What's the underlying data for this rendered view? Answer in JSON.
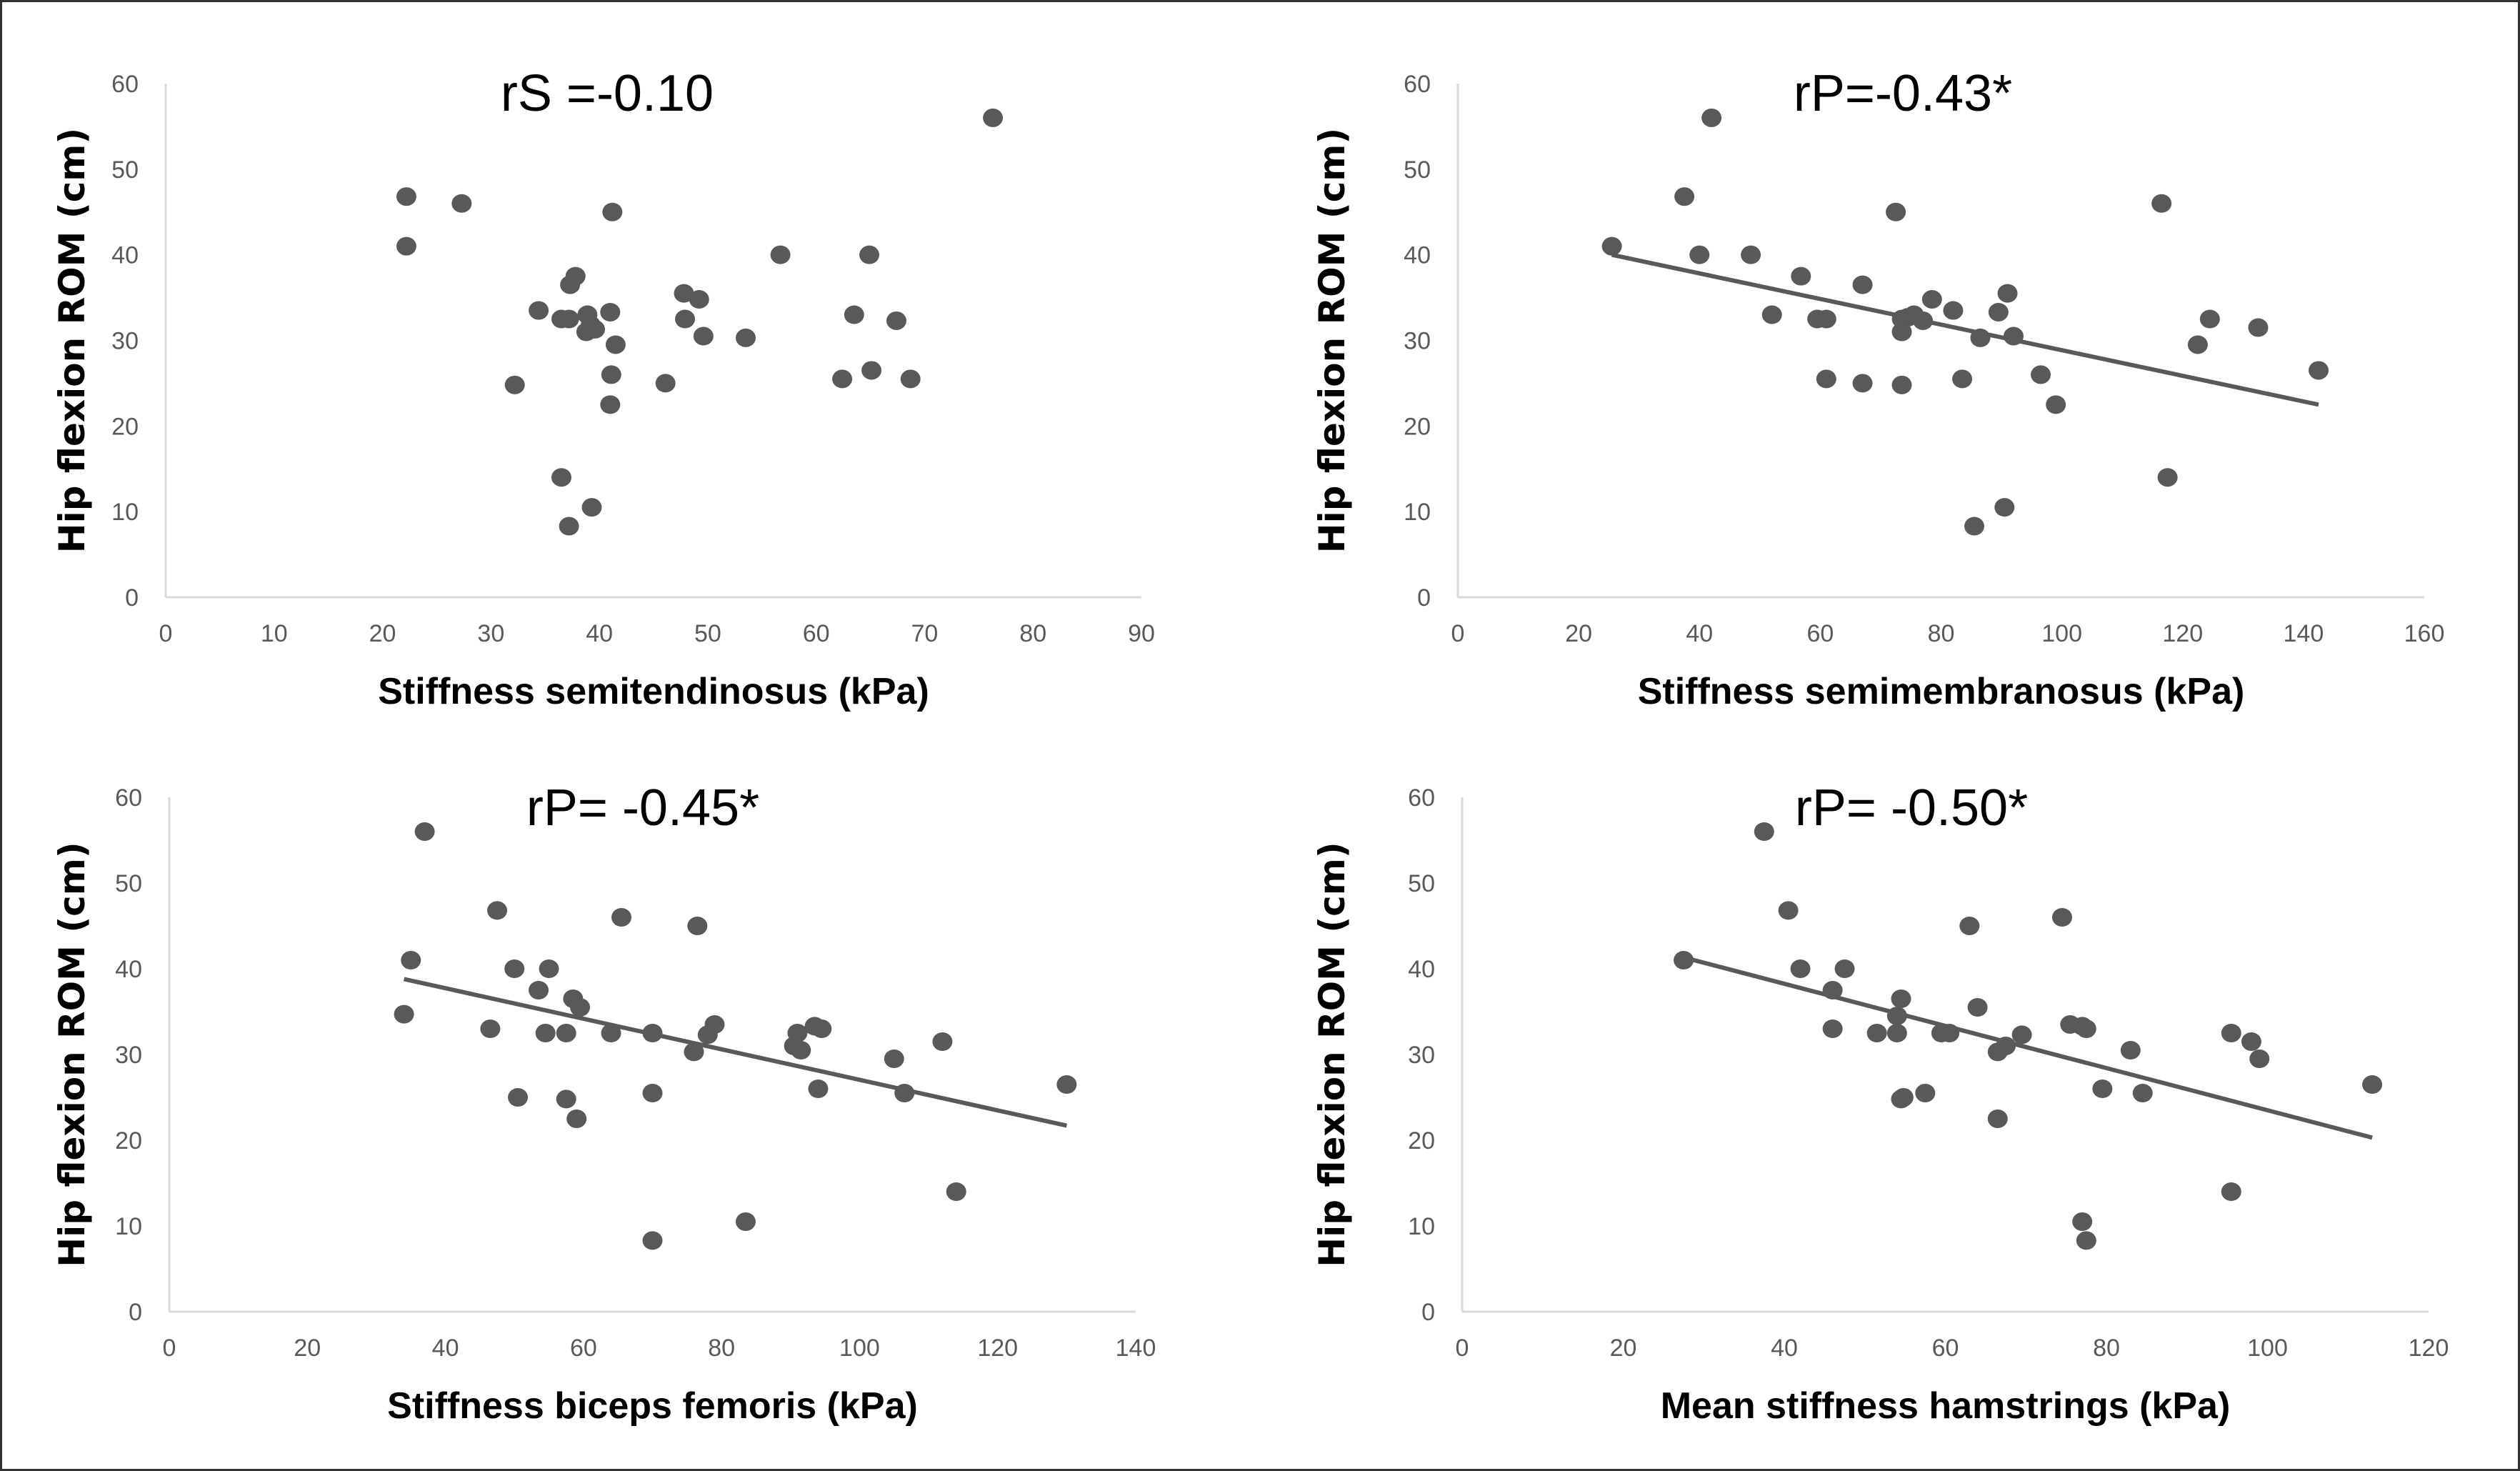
{
  "figure": {
    "border_color": "#333333",
    "point_color": "#595959",
    "trend_color": "#595959",
    "axis_color": "#d9d9d9"
  },
  "chart_data": [
    {
      "id": "semitendinosus",
      "type": "scatter",
      "title": "",
      "annotation": "rS =-0.10",
      "xlabel": "Stiffness semitendinosus (kPa)",
      "ylabel": "Hip flexion ROM (cm)",
      "xlim": [
        0,
        90
      ],
      "ylim": [
        0,
        60
      ],
      "xticks": [
        0,
        10,
        20,
        30,
        40,
        50,
        60,
        70,
        80,
        90
      ],
      "yticks": [
        0,
        10,
        20,
        30,
        40,
        50,
        60
      ],
      "grid": false,
      "trendline": null,
      "points": [
        [
          22.2,
          46.8
        ],
        [
          22.2,
          41.0
        ],
        [
          27.3,
          46.0
        ],
        [
          41.2,
          45.0
        ],
        [
          76.3,
          56.0
        ],
        [
          56.7,
          40.0
        ],
        [
          64.9,
          40.0
        ],
        [
          37.8,
          37.5
        ],
        [
          37.3,
          36.5
        ],
        [
          34.4,
          33.5
        ],
        [
          36.5,
          32.5
        ],
        [
          37.2,
          32.5
        ],
        [
          38.9,
          33.0
        ],
        [
          41.0,
          33.3
        ],
        [
          38.8,
          31.0
        ],
        [
          39.2,
          31.8
        ],
        [
          39.6,
          31.3
        ],
        [
          41.5,
          29.5
        ],
        [
          47.8,
          35.5
        ],
        [
          49.2,
          34.8
        ],
        [
          47.9,
          32.5
        ],
        [
          49.6,
          30.5
        ],
        [
          53.5,
          30.3
        ],
        [
          63.5,
          33.0
        ],
        [
          67.4,
          32.3
        ],
        [
          32.2,
          24.8
        ],
        [
          41.1,
          26.0
        ],
        [
          41.0,
          22.5
        ],
        [
          46.1,
          25.0
        ],
        [
          62.4,
          25.5
        ],
        [
          65.1,
          26.5
        ],
        [
          68.7,
          25.5
        ],
        [
          36.5,
          14.0
        ],
        [
          39.3,
          10.5
        ],
        [
          37.2,
          8.3
        ]
      ]
    },
    {
      "id": "semimembranosus",
      "type": "scatter",
      "title": "",
      "annotation": "rP=-0.43*",
      "xlabel": "Stiffness semimembranosus (kPa)",
      "ylabel": "Hip flexion ROM (cm)",
      "xlim": [
        0,
        160
      ],
      "ylim": [
        0,
        60
      ],
      "xticks": [
        0,
        20,
        40,
        60,
        80,
        100,
        120,
        140,
        160
      ],
      "yticks": [
        0,
        10,
        20,
        30,
        40,
        50,
        60
      ],
      "grid": false,
      "trendline": {
        "x": [
          25.5,
          142.5
        ],
        "y": [
          40.0,
          22.5
        ]
      },
      "points": [
        [
          42.0,
          56.0
        ],
        [
          37.5,
          46.8
        ],
        [
          116.5,
          46.0
        ],
        [
          72.5,
          45.0
        ],
        [
          25.5,
          41.0
        ],
        [
          40.0,
          40.0
        ],
        [
          48.5,
          40.0
        ],
        [
          56.8,
          37.5
        ],
        [
          67.0,
          36.5
        ],
        [
          52.0,
          33.0
        ],
        [
          59.5,
          32.5
        ],
        [
          61.0,
          32.5
        ],
        [
          73.5,
          32.5
        ],
        [
          74.5,
          32.7
        ],
        [
          75.5,
          33.0
        ],
        [
          73.5,
          31.0
        ],
        [
          77.0,
          32.3
        ],
        [
          78.5,
          34.8
        ],
        [
          82.0,
          33.5
        ],
        [
          89.5,
          33.3
        ],
        [
          91.0,
          35.5
        ],
        [
          86.5,
          30.3
        ],
        [
          92.0,
          30.5
        ],
        [
          124.5,
          32.5
        ],
        [
          122.5,
          29.5
        ],
        [
          132.5,
          31.5
        ],
        [
          61.0,
          25.5
        ],
        [
          67.0,
          25.0
        ],
        [
          73.5,
          24.8
        ],
        [
          83.5,
          25.5
        ],
        [
          96.5,
          26.0
        ],
        [
          99.0,
          22.5
        ],
        [
          142.5,
          26.5
        ],
        [
          117.5,
          14.0
        ],
        [
          90.5,
          10.5
        ],
        [
          85.5,
          8.3
        ]
      ]
    },
    {
      "id": "biceps_femoris",
      "type": "scatter",
      "title": "",
      "annotation": "rP= -0.45*",
      "xlabel": "Stiffness biceps femoris (kPa)",
      "ylabel": "Hip flexion ROM (cm)",
      "xlim": [
        0,
        140
      ],
      "ylim": [
        0,
        60
      ],
      "xticks": [
        0,
        20,
        40,
        60,
        80,
        100,
        120,
        140
      ],
      "yticks": [
        0,
        10,
        20,
        30,
        40,
        50,
        60
      ],
      "grid": false,
      "trendline": {
        "x": [
          34.0,
          130.0
        ],
        "y": [
          38.8,
          21.7
        ]
      },
      "points": [
        [
          37.0,
          56.0
        ],
        [
          47.5,
          46.8
        ],
        [
          65.5,
          46.0
        ],
        [
          76.5,
          45.0
        ],
        [
          35.0,
          41.0
        ],
        [
          50.0,
          40.0
        ],
        [
          55.0,
          40.0
        ],
        [
          53.5,
          37.5
        ],
        [
          58.5,
          36.5
        ],
        [
          59.5,
          35.5
        ],
        [
          34.0,
          34.7
        ],
        [
          46.5,
          33.0
        ],
        [
          54.5,
          32.5
        ],
        [
          57.5,
          32.5
        ],
        [
          64.0,
          32.5
        ],
        [
          70.0,
          32.5
        ],
        [
          78.0,
          32.3
        ],
        [
          79.0,
          33.5
        ],
        [
          76.0,
          30.3
        ],
        [
          91.0,
          32.5
        ],
        [
          90.5,
          31.0
        ],
        [
          91.5,
          30.5
        ],
        [
          93.5,
          33.3
        ],
        [
          94.5,
          33.0
        ],
        [
          105.0,
          29.5
        ],
        [
          112.0,
          31.5
        ],
        [
          50.5,
          25.0
        ],
        [
          57.5,
          24.8
        ],
        [
          59.0,
          22.5
        ],
        [
          70.0,
          25.5
        ],
        [
          94.0,
          26.0
        ],
        [
          106.5,
          25.5
        ],
        [
          130.0,
          26.5
        ],
        [
          114.0,
          14.0
        ],
        [
          83.5,
          10.5
        ],
        [
          70.0,
          8.3
        ]
      ]
    },
    {
      "id": "mean_hamstrings",
      "type": "scatter",
      "title": "",
      "annotation": "rP= -0.50*",
      "xlabel": "Mean stiffness hamstrings (kPa)",
      "ylabel": "Hip flexion ROM (cm)",
      "xlim": [
        0,
        120
      ],
      "ylim": [
        0,
        60
      ],
      "xticks": [
        0,
        20,
        40,
        60,
        80,
        100,
        120
      ],
      "yticks": [
        0,
        10,
        20,
        30,
        40,
        50,
        60
      ],
      "grid": false,
      "trendline": {
        "x": [
          28.0,
          113.0
        ],
        "y": [
          41.2,
          20.3
        ]
      },
      "points": [
        [
          37.5,
          56.0
        ],
        [
          40.5,
          46.8
        ],
        [
          74.5,
          46.0
        ],
        [
          63.0,
          45.0
        ],
        [
          27.5,
          41.0
        ],
        [
          42.0,
          40.0
        ],
        [
          47.5,
          40.0
        ],
        [
          46.0,
          37.5
        ],
        [
          54.5,
          36.5
        ],
        [
          64.0,
          35.5
        ],
        [
          46.0,
          33.0
        ],
        [
          51.5,
          32.5
        ],
        [
          54.0,
          32.5
        ],
        [
          54.0,
          34.5
        ],
        [
          59.5,
          32.5
        ],
        [
          60.5,
          32.5
        ],
        [
          69.5,
          32.3
        ],
        [
          66.5,
          30.3
        ],
        [
          67.5,
          31.0
        ],
        [
          75.5,
          33.5
        ],
        [
          77.0,
          33.3
        ],
        [
          77.5,
          33.0
        ],
        [
          83.0,
          30.5
        ],
        [
          95.5,
          32.5
        ],
        [
          98.0,
          31.5
        ],
        [
          99.0,
          29.5
        ],
        [
          54.5,
          24.8
        ],
        [
          54.8,
          25.0
        ],
        [
          57.5,
          25.5
        ],
        [
          66.5,
          22.5
        ],
        [
          79.5,
          26.0
        ],
        [
          84.5,
          25.5
        ],
        [
          113.0,
          26.5
        ],
        [
          95.5,
          14.0
        ],
        [
          77.0,
          10.5
        ],
        [
          77.5,
          8.3
        ]
      ]
    }
  ]
}
